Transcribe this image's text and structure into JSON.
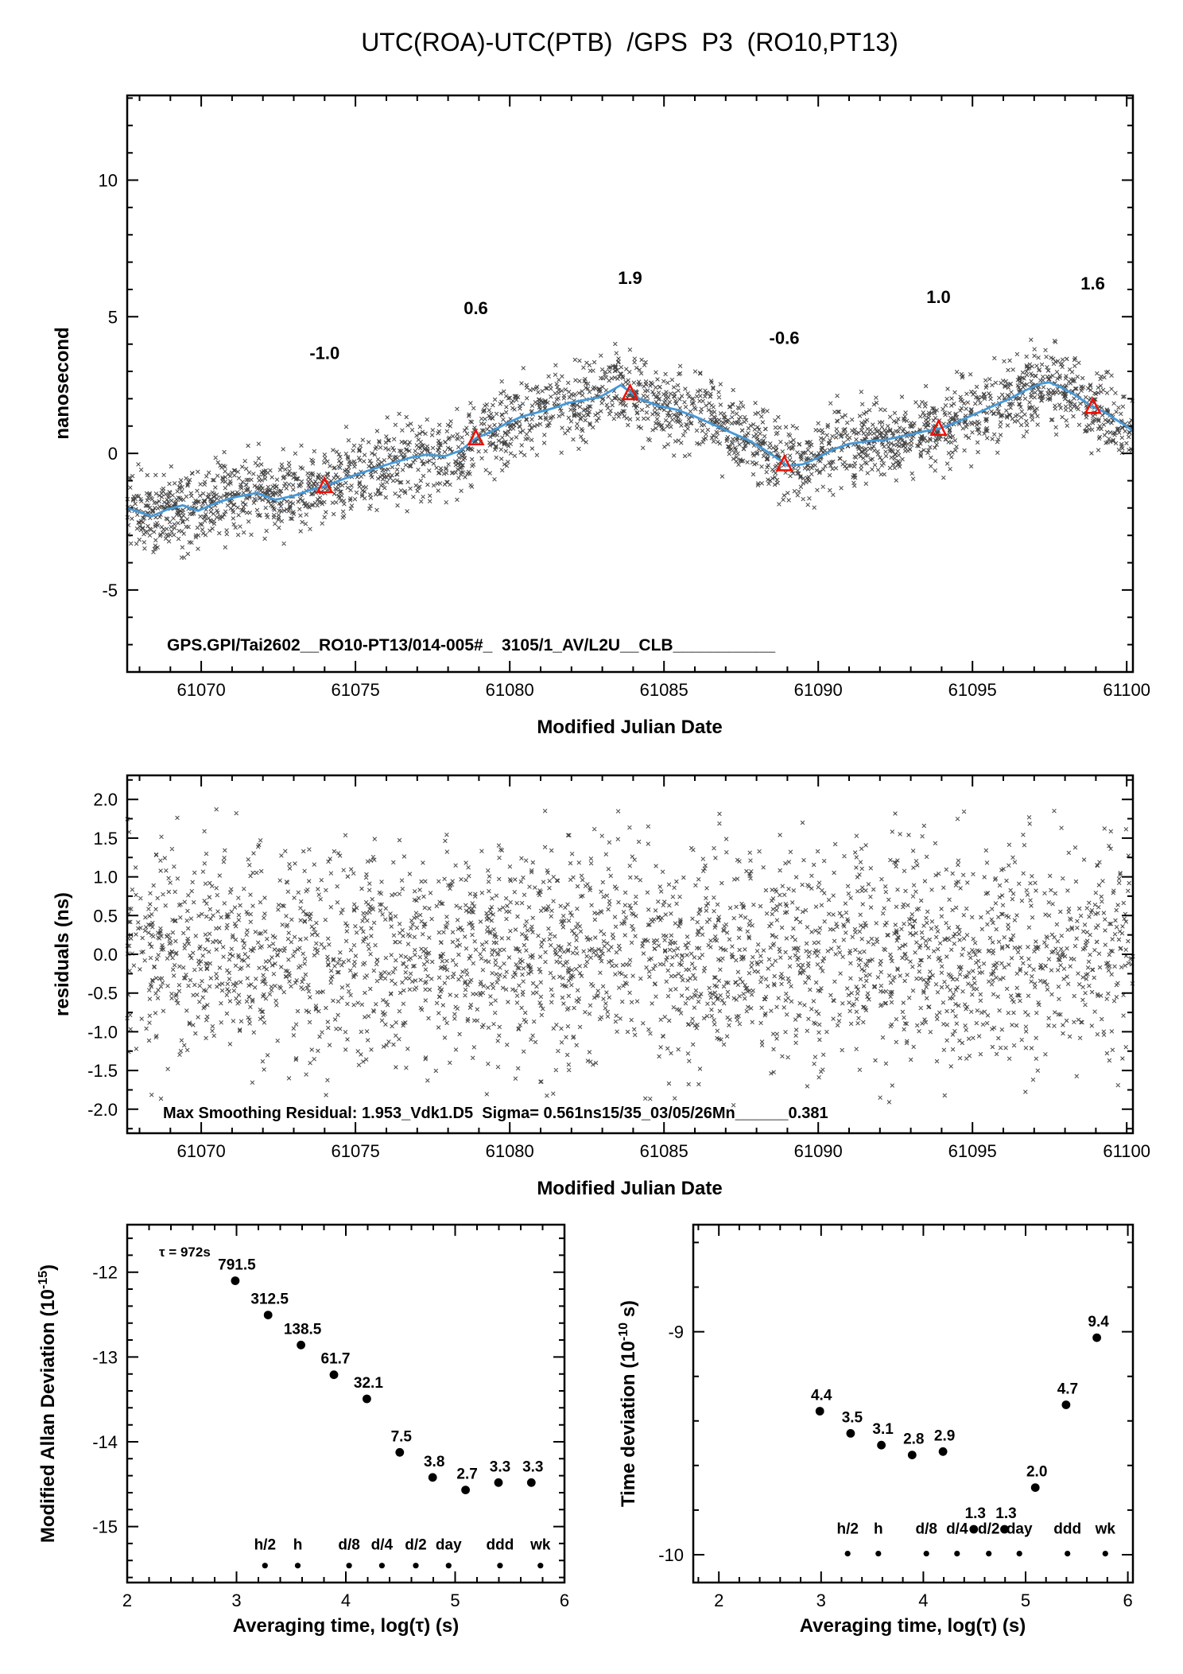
{
  "colors": {
    "scatter": "#1a1a1a",
    "smooth_line": "#4699d8",
    "red": "#ee1100",
    "axis": "#000000",
    "background": "#ffffff"
  },
  "chart_data": [
    {
      "id": "phase",
      "type": "scatter",
      "title": "UTC(ROA)-UTC(PTB)  /GPS  P3  (RO10,PT13)",
      "xlabel": "Modified Julian Date",
      "ylabel": "nanosecond",
      "annotation": "GPS.GPI/Tai2602__RO10-PT13/014-005#_  3105/1_AV/L2U__CLB___________",
      "xlim": [
        61067.6,
        61100.2
      ],
      "ylim": [
        -8.0,
        13.1
      ],
      "xticks": {
        "values": [
          61070,
          61075,
          61080,
          61085,
          61090,
          61095,
          61100
        ],
        "labels": [
          "61070",
          "61075",
          "61080",
          "61085",
          "61090",
          "61095",
          "61100"
        ]
      },
      "yticks": {
        "values": [
          10,
          5,
          0,
          -5
        ],
        "labels": [
          "10",
          "5",
          "0",
          "-5"
        ]
      },
      "smoothed_series": {
        "x": [
          61067.6,
          61068.0,
          61068.4,
          61068.9,
          61069.4,
          61069.9,
          61070.5,
          61071.1,
          61071.8,
          61072.4,
          61073.0,
          61073.5,
          61074.0,
          61074.7,
          61075.5,
          61076.2,
          61076.8,
          61077.3,
          61077.9,
          61078.4,
          61078.9,
          61079.4,
          61079.9,
          61080.4,
          61080.9,
          61081.4,
          61081.9,
          61082.4,
          61082.9,
          61083.3,
          61083.6,
          61084.2,
          61084.8,
          61085.4,
          61086.0,
          61086.6,
          61087.2,
          61087.8,
          61088.3,
          61088.7,
          61089.0,
          61089.5,
          61090.0,
          61090.5,
          61091.0,
          61091.6,
          61092.2,
          61092.8,
          61093.4,
          61093.9,
          61094.4,
          61095.0,
          61095.6,
          61096.2,
          61096.7,
          61097.2,
          61097.5,
          61097.9,
          61098.3,
          61098.9,
          61099.3,
          61099.7,
          61100.0,
          61100.2
        ],
        "y": [
          -2.0,
          -2.15,
          -2.3,
          -2.05,
          -1.9,
          -2.1,
          -1.8,
          -1.6,
          -1.45,
          -1.7,
          -1.55,
          -1.35,
          -1.2,
          -0.9,
          -0.6,
          -0.35,
          -0.15,
          -0.05,
          -0.1,
          0.1,
          0.55,
          0.8,
          1.1,
          1.35,
          1.5,
          1.65,
          1.85,
          1.95,
          2.05,
          2.3,
          2.5,
          2.0,
          1.75,
          1.6,
          1.35,
          1.05,
          0.75,
          0.45,
          0.1,
          -0.2,
          -0.45,
          -0.4,
          -0.15,
          0.15,
          0.35,
          0.45,
          0.5,
          0.65,
          0.8,
          0.9,
          1.1,
          1.4,
          1.7,
          2.0,
          2.3,
          2.55,
          2.6,
          2.4,
          2.15,
          1.7,
          1.5,
          1.2,
          1.0,
          0.8
        ]
      },
      "calibration_triangles": [
        {
          "x": 61074.0,
          "y": -1.2,
          "label": "-1.0",
          "label_y": 3.45
        },
        {
          "x": 61078.9,
          "y": 0.55,
          "label": "0.6",
          "label_y": 5.1
        },
        {
          "x": 61083.9,
          "y": 2.2,
          "label": "1.9",
          "label_y": 6.2
        },
        {
          "x": 61088.9,
          "y": -0.4,
          "label": "-0.6",
          "label_y": 4.0
        },
        {
          "x": 61093.9,
          "y": 0.9,
          "label": "1.0",
          "label_y": 5.5
        },
        {
          "x": 61098.9,
          "y": 1.7,
          "label": "1.6",
          "label_y": 6.0
        }
      ],
      "scatter_model": {
        "marker": "x",
        "n_points": 2800,
        "noise_sigma_ns": 0.7,
        "max_abs_residual_ns": 1.95,
        "seed": 20260305
      }
    },
    {
      "id": "residuals",
      "type": "scatter",
      "xlabel": "Modified Julian Date",
      "ylabel": "residuals (ns)",
      "annotation": "Max Smoothing Residual: 1.953_Vdk1.D5  Sigma= 0.561ns15/35_03/05/26Mn______0.381",
      "xlim": [
        61067.6,
        61100.2
      ],
      "ylim": [
        -2.31,
        2.31
      ],
      "xticks": {
        "values": [
          61070,
          61075,
          61080,
          61085,
          61090,
          61095,
          61100
        ],
        "labels": [
          "61070",
          "61075",
          "61080",
          "61085",
          "61090",
          "61095",
          "61100"
        ]
      },
      "yticks": {
        "values": [
          2.0,
          1.5,
          1.0,
          0.5,
          0.0,
          -0.5,
          -1.0,
          -1.5,
          -2.0
        ],
        "labels": [
          "2.0",
          "1.5",
          "1.0",
          "0.5",
          "0.0",
          "-0.5",
          "-1.0",
          "-1.5",
          "-2.0"
        ]
      },
      "scatter_model": {
        "marker": "x",
        "n_points": 2800,
        "noise_sigma_ns": 0.7,
        "max_abs_residual_ns": 1.95,
        "seed": 99173
      }
    },
    {
      "id": "mdev",
      "type": "scatter",
      "xlabel": "Averaging time, log(τ) (s)",
      "ylabel_prefix": "Modified Allan Deviation (10",
      "ylabel_sup": "-15",
      "ylabel_suffix": ")",
      "annotation": "τ = 972s",
      "xlim": [
        2,
        6
      ],
      "ylim": [
        -15.66,
        -11.44
      ],
      "xticks": {
        "values": [
          2,
          3,
          4,
          5,
          6
        ],
        "labels": [
          "2",
          "3",
          "4",
          "5",
          "6"
        ]
      },
      "yticks": {
        "values": [
          -12,
          -13,
          -14,
          -15
        ],
        "labels": [
          "-12",
          "-13",
          "-14",
          "-15"
        ]
      },
      "exponent": -15,
      "log_tau": [
        2.988,
        3.289,
        3.59,
        3.891,
        4.192,
        4.493,
        4.794,
        5.095,
        5.396,
        5.697
      ],
      "values": [
        791.5,
        312.5,
        138.5,
        61.7,
        32.1,
        7.5,
        3.8,
        2.7,
        3.3,
        3.3
      ],
      "value_labels": [
        "791.5",
        "312.5",
        "138.5",
        "61.7",
        "32.1",
        "7.5",
        "3.8",
        "2.7",
        "3.3",
        "3.3"
      ],
      "time_markers": {
        "labels": [
          "h/2",
          "h",
          "d/8",
          "d/4",
          "d/2",
          "day",
          "ddd",
          "wk"
        ],
        "log_values": [
          3.26,
          3.56,
          4.03,
          4.33,
          4.64,
          4.94,
          5.41,
          5.78
        ],
        "marker_y": -15.46,
        "label_y": -15.27
      }
    },
    {
      "id": "tdev",
      "type": "scatter",
      "xlabel": "Averaging time, log(τ) (s)",
      "ylabel_prefix": "Time deviation (10",
      "ylabel_sup": "-10",
      "ylabel_suffix": " s)",
      "xlim": [
        1.75,
        6.05
      ],
      "ylim": [
        -10.125,
        -8.52
      ],
      "xticks": {
        "values": [
          2,
          3,
          4,
          5,
          6
        ],
        "labels": [
          "2",
          "3",
          "4",
          "5",
          "6"
        ]
      },
      "yticks": {
        "values": [
          -9,
          -10
        ],
        "labels": [
          "-9",
          "-10"
        ]
      },
      "exponent": -10,
      "log_tau": [
        2.988,
        3.289,
        3.59,
        3.891,
        4.192,
        4.493,
        4.794,
        5.095,
        5.396,
        5.697
      ],
      "values": [
        4.4,
        3.5,
        3.1,
        2.8,
        2.9,
        1.3,
        1.3,
        2.0,
        4.7,
        9.4
      ],
      "value_labels": [
        "4.4",
        "3.5",
        "3.1",
        "2.8",
        "2.9",
        "1.3",
        "1.3",
        "2.0",
        "4.7",
        "9.4"
      ],
      "time_markers": {
        "labels": [
          "h/2",
          "h",
          "d/8",
          "d/4",
          "d/2",
          "day",
          "ddd",
          "wk"
        ],
        "log_values": [
          3.26,
          3.56,
          4.03,
          4.33,
          4.64,
          4.94,
          5.41,
          5.78
        ],
        "marker_y": -9.995,
        "label_y": -9.905
      }
    }
  ]
}
